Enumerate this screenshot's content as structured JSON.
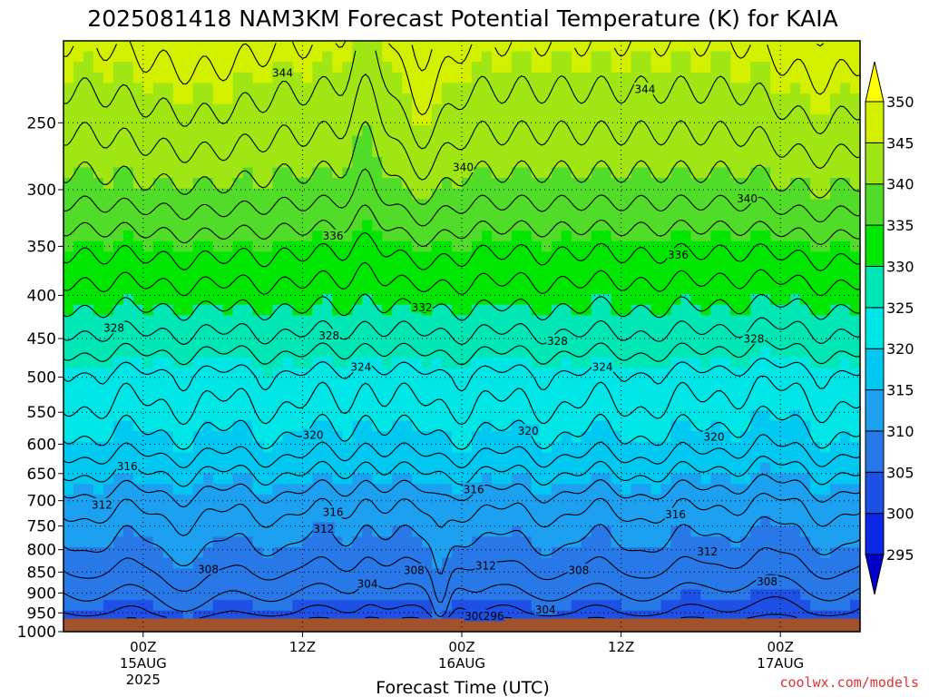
{
  "chart_data": {
    "type": "heatmap",
    "title": "2025081418 NAM3KM Forecast Potential Temperature (K) for KAIA",
    "xlabel": "Forecast Time (UTC)",
    "ylabel": "",
    "x_ticks": [
      {
        "hour": 6,
        "lines": [
          "00Z",
          "15AUG",
          "2025"
        ]
      },
      {
        "hour": 18,
        "lines": [
          "12Z"
        ]
      },
      {
        "hour": 30,
        "lines": [
          "00Z",
          "16AUG"
        ]
      },
      {
        "hour": 42,
        "lines": [
          "12Z"
        ]
      },
      {
        "hour": 54,
        "lines": [
          "00Z",
          "17AUG"
        ]
      }
    ],
    "x_range": [
      0,
      60
    ],
    "y_ticks": [
      250,
      300,
      350,
      400,
      450,
      500,
      550,
      600,
      650,
      700,
      750,
      800,
      850,
      900,
      950,
      1000
    ],
    "y_range": [
      200,
      1000
    ],
    "y_scale": "log",
    "surface_pressure": 965,
    "grid": true,
    "colorbar": {
      "levels": [
        295,
        300,
        305,
        310,
        315,
        320,
        325,
        330,
        335,
        340,
        345,
        350
      ],
      "colors": [
        "#0000c8",
        "#0a28e6",
        "#1e50e6",
        "#2878e8",
        "#1ea0f0",
        "#00c8f0",
        "#00e6e6",
        "#00e6b4",
        "#00e600",
        "#50dc28",
        "#a0e614",
        "#d2f000",
        "#ffff00"
      ],
      "position": "right",
      "extend": "both"
    },
    "surface_color": "#a0522d",
    "contour_interval": 2,
    "base_profile": {
      "pressure": [
        965,
        950,
        900,
        850,
        800,
        750,
        700,
        650,
        600,
        550,
        500,
        450,
        400,
        350,
        300,
        250,
        200
      ],
      "theta": [
        302.5,
        304,
        306,
        307.8,
        309.5,
        311,
        313,
        316,
        319.2,
        321.5,
        323.5,
        327.5,
        331,
        334.5,
        339,
        342.5,
        346
      ]
    },
    "contour_labels": [
      {
        "value": 344,
        "t": 16.5,
        "p": 218
      },
      {
        "value": 344,
        "t": 43.8,
        "p": 228
      },
      {
        "value": 340,
        "t": 30.1,
        "p": 282
      },
      {
        "value": 340,
        "t": 51.5,
        "p": 307
      },
      {
        "value": 336,
        "t": 20.3,
        "p": 340
      },
      {
        "value": 336,
        "t": 46.3,
        "p": 358
      },
      {
        "value": 332,
        "t": 27.0,
        "p": 413
      },
      {
        "value": 328,
        "t": 3.8,
        "p": 437
      },
      {
        "value": 328,
        "t": 20.0,
        "p": 446
      },
      {
        "value": 328,
        "t": 37.2,
        "p": 453
      },
      {
        "value": 328,
        "t": 52.0,
        "p": 450
      },
      {
        "value": 324,
        "t": 22.4,
        "p": 486
      },
      {
        "value": 324,
        "t": 40.6,
        "p": 486
      },
      {
        "value": 320,
        "t": 18.8,
        "p": 585
      },
      {
        "value": 320,
        "t": 35.0,
        "p": 578
      },
      {
        "value": 320,
        "t": 49.0,
        "p": 588
      },
      {
        "value": 316,
        "t": 4.8,
        "p": 637
      },
      {
        "value": 316,
        "t": 30.9,
        "p": 678
      },
      {
        "value": 316,
        "t": 20.3,
        "p": 722
      },
      {
        "value": 316,
        "t": 46.1,
        "p": 726
      },
      {
        "value": 312,
        "t": 2.9,
        "p": 707
      },
      {
        "value": 312,
        "t": 19.6,
        "p": 755
      },
      {
        "value": 312,
        "t": 31.8,
        "p": 835
      },
      {
        "value": 312,
        "t": 48.5,
        "p": 803
      },
      {
        "value": 308,
        "t": 10.9,
        "p": 843
      },
      {
        "value": 308,
        "t": 26.4,
        "p": 845
      },
      {
        "value": 308,
        "t": 38.8,
        "p": 845
      },
      {
        "value": 308,
        "t": 53.0,
        "p": 872
      },
      {
        "value": 304,
        "t": 22.9,
        "p": 877
      },
      {
        "value": 304,
        "t": 36.3,
        "p": 941
      },
      {
        "value": 300,
        "t": 31.0,
        "p": 958
      },
      {
        "value": 296,
        "t": 32.4,
        "p": 958
      }
    ]
  },
  "credit": "coolwx.com/models"
}
